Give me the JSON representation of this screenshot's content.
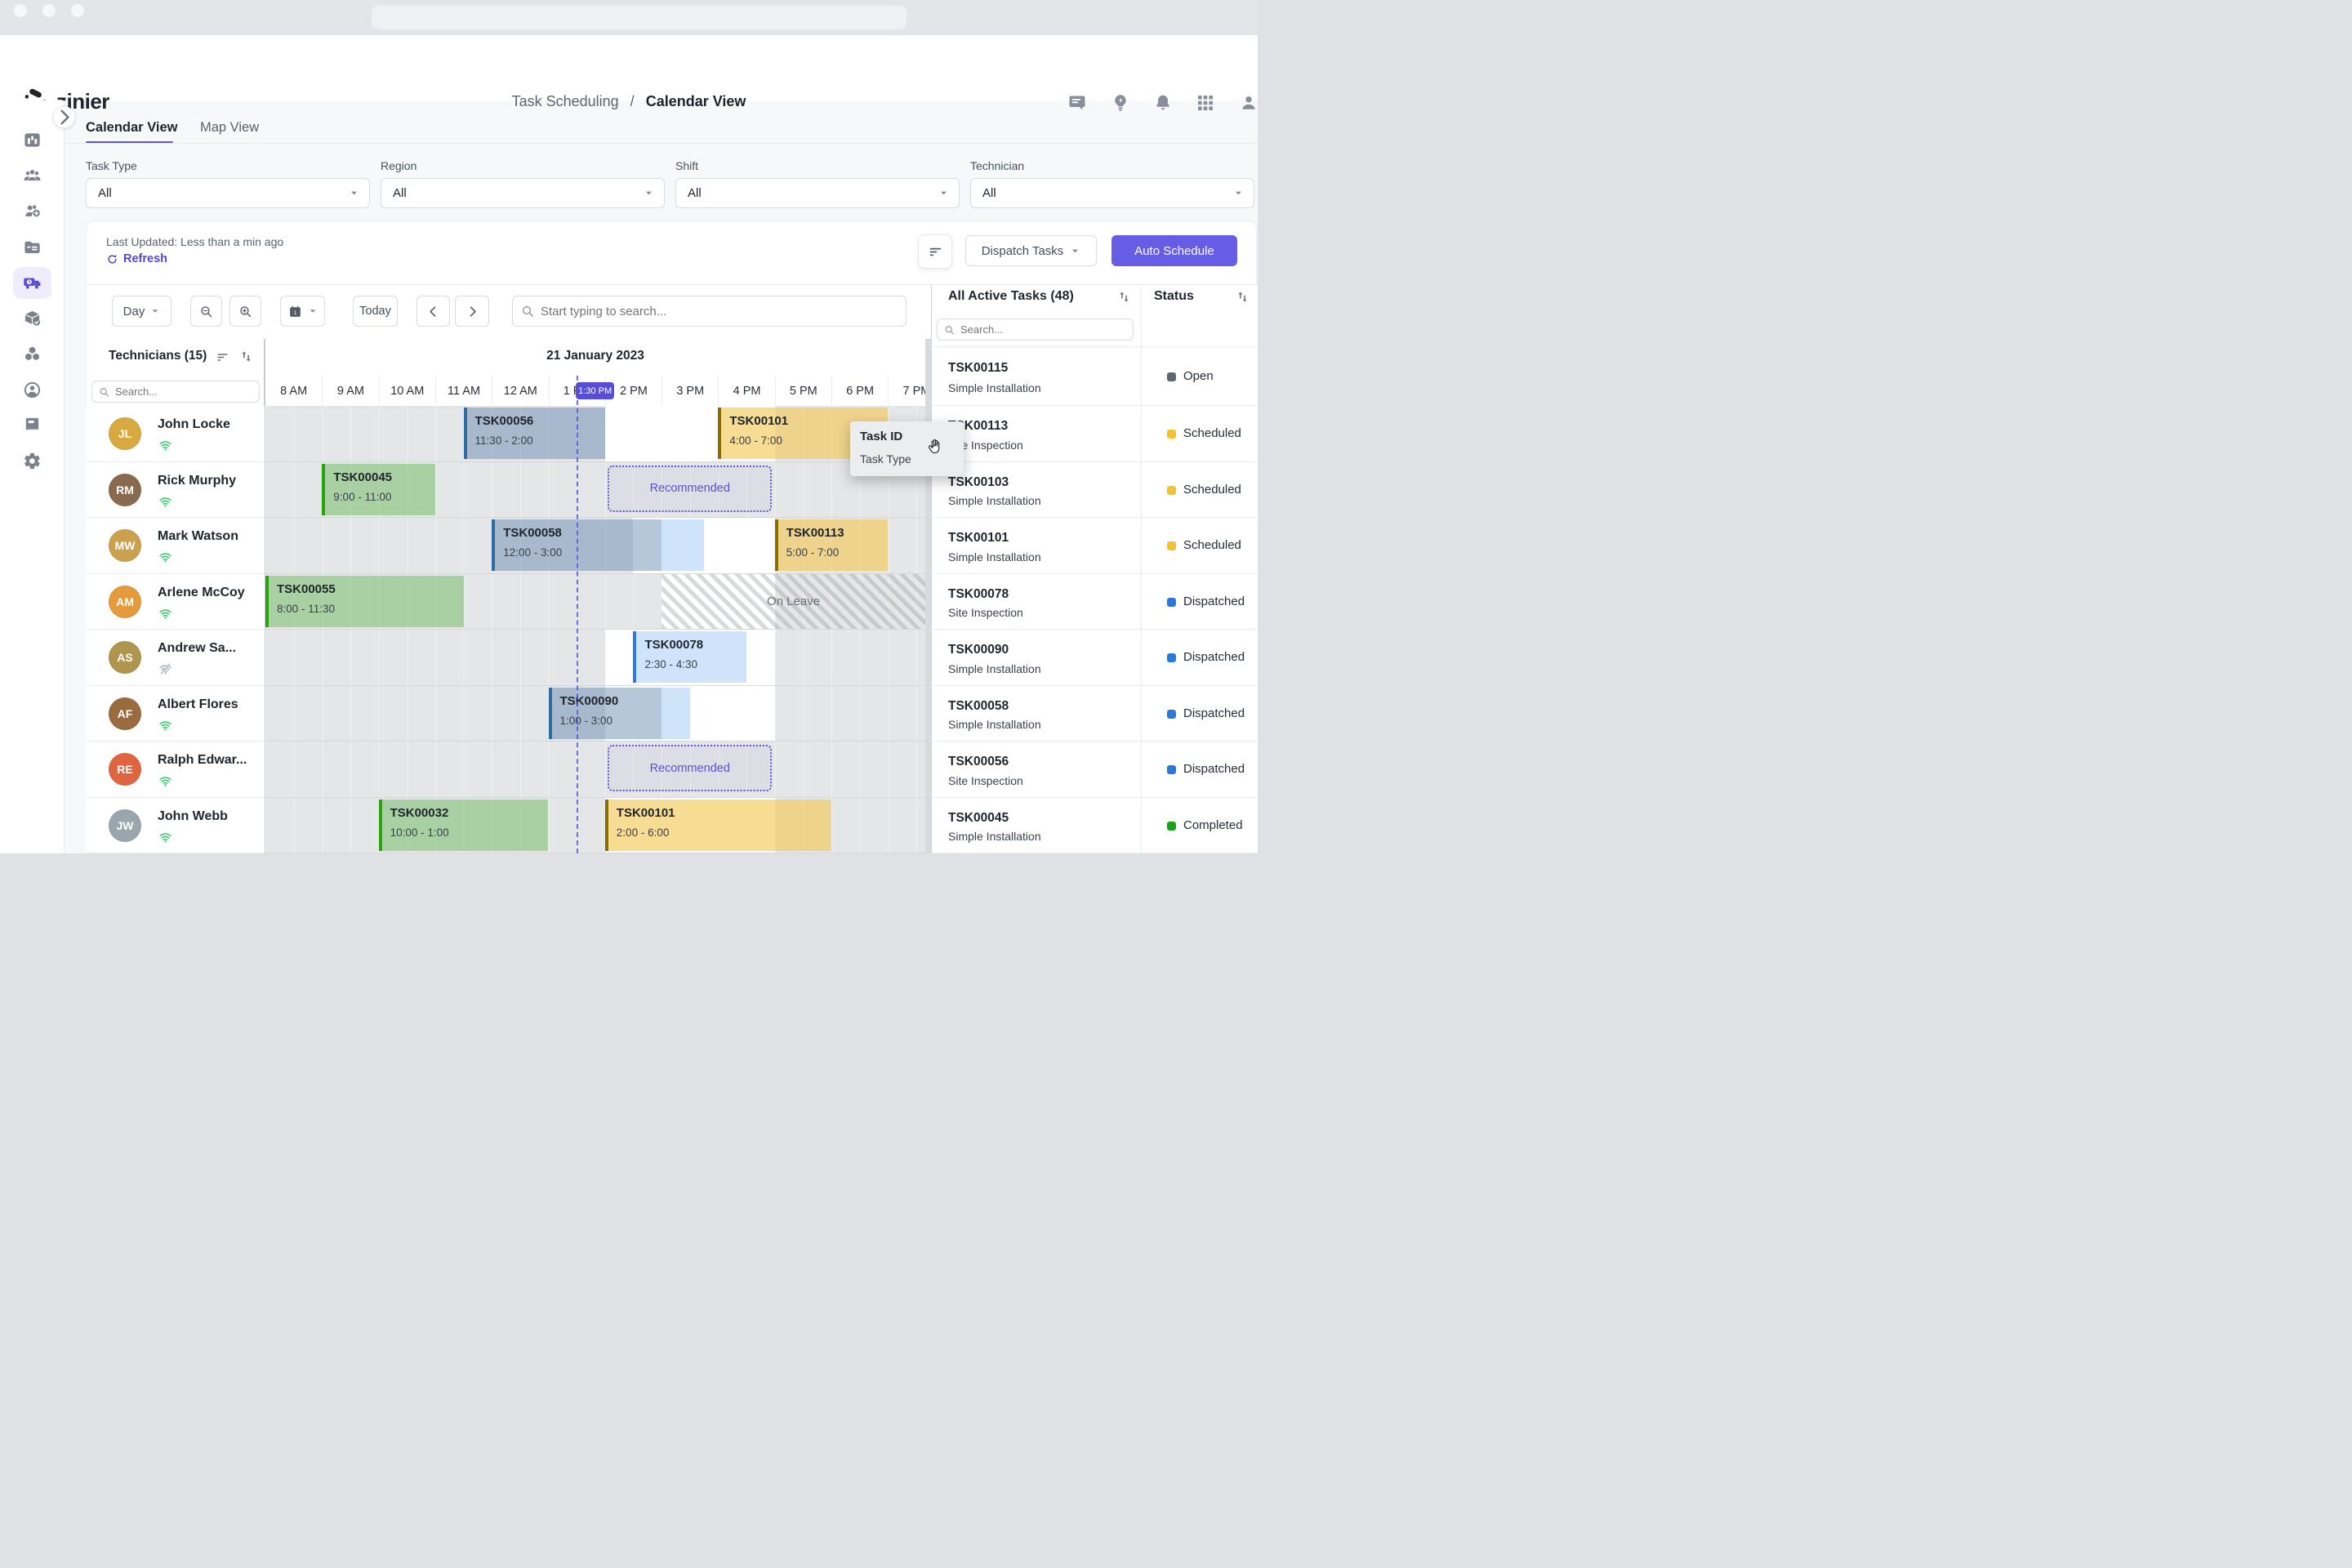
{
  "header": {
    "logo_text": "zinier",
    "breadcrumb": {
      "section": "Task Scheduling",
      "separator": "/",
      "page": "Calendar View"
    },
    "icons": [
      {
        "name": "messages"
      },
      {
        "name": "ideas"
      },
      {
        "name": "notifications"
      },
      {
        "name": "apps"
      },
      {
        "name": "account"
      }
    ]
  },
  "sidebar": {
    "items": [
      {
        "name": "analytics",
        "active": false
      },
      {
        "name": "teams",
        "active": false
      },
      {
        "name": "add-technician",
        "active": false
      },
      {
        "name": "work-orders",
        "active": false
      },
      {
        "name": "task-scheduling",
        "active": true
      },
      {
        "name": "inventory",
        "active": false
      },
      {
        "name": "assets",
        "active": false
      },
      {
        "name": "customers",
        "active": false
      },
      {
        "name": "knowledge-base",
        "active": false
      },
      {
        "name": "settings",
        "active": false
      }
    ]
  },
  "tabs": [
    {
      "label": "Calendar View",
      "active": true
    },
    {
      "label": "Map View",
      "active": false
    }
  ],
  "filters": [
    {
      "label": "Task Type",
      "value": "All"
    },
    {
      "label": "Region",
      "value": "All"
    },
    {
      "label": "Shift",
      "value": "All"
    },
    {
      "label": "Technician",
      "value": "All"
    }
  ],
  "toolbar": {
    "last_updated": "Last Updated: Less than a min ago",
    "refresh_label": "Refresh",
    "dispatch_tasks_label": "Dispatch Tasks",
    "auto_schedule_label": "Auto Schedule"
  },
  "controls": {
    "view_mode": "Day",
    "today_label": "Today",
    "search_placeholder": "Start typing to search..."
  },
  "schedule": {
    "date_header": "21 January 2023",
    "technicians_header": "Technicians (15)",
    "tech_search_placeholder": "Search...",
    "hours": [
      "8 AM",
      "9 AM",
      "10 AM",
      "11 AM",
      "12 AM",
      "1 PM",
      "2 PM",
      "3 PM",
      "4 PM",
      "5 PM",
      "6 PM",
      "7 PM"
    ],
    "now_indicator": {
      "label": "1:30 PM",
      "hours_from_start": 5.5
    },
    "technicians": [
      {
        "name": "John Locke",
        "initials": "JL",
        "online": true,
        "avatar_color": "#d8a93f"
      },
      {
        "name": "Rick Murphy",
        "initials": "RM",
        "online": true,
        "avatar_color": "#8a6a4f"
      },
      {
        "name": "Mark Watson",
        "initials": "MW",
        "online": true,
        "avatar_color": "#caa14e"
      },
      {
        "name": "Arlene McCoy",
        "initials": "AM",
        "online": true,
        "avatar_color": "#e59a3c"
      },
      {
        "name": "Andrew Sa...",
        "initials": "AS",
        "online": false,
        "avatar_color": "#b0954f"
      },
      {
        "name": "Albert Flores",
        "initials": "AF",
        "online": true,
        "avatar_color": "#9a6b3f"
      },
      {
        "name": "Ralph Edwar...",
        "initials": "RE",
        "online": true,
        "avatar_color": "#df6540"
      },
      {
        "name": "John Webb",
        "initials": "JW",
        "online": true,
        "avatar_color": "#9aa6ad"
      }
    ],
    "rows": [
      {
        "available": [
          {
            "start": 6,
            "end": 9
          }
        ],
        "tasks": [
          {
            "id": "TSK00056",
            "time": "11:30 - 2:00",
            "color": "steel",
            "start": 3.5,
            "duration": 2.5
          },
          {
            "id": "TSK00101",
            "time": "4:00 - 7:00",
            "color": "gold",
            "start": 8,
            "duration": 3
          }
        ]
      },
      {
        "tasks": [
          {
            "id": "TSK00045",
            "time": "9:00 - 11:00",
            "color": "green",
            "start": 1,
            "duration": 2
          }
        ],
        "recommended": {
          "label": "Recommended",
          "start": 6.05,
          "duration": 2.9
        }
      },
      {
        "available": [
          {
            "start": 6.5,
            "end": 9
          }
        ],
        "tasks": [
          {
            "id": "TSK00058",
            "time": "12:00 - 3:00",
            "color": "steel",
            "start": 4,
            "duration": 3
          },
          {
            "id": "TSK00113",
            "time": "5:00 - 7:00",
            "color": "gold",
            "start": 9,
            "duration": 2
          }
        ],
        "extensions": [
          {
            "start": 7,
            "duration": 0.75
          }
        ]
      },
      {
        "available": [
          {
            "start": 7,
            "end": 9
          }
        ],
        "tasks": [
          {
            "id": "TSK00055",
            "time": "8:00 - 11:30",
            "color": "green",
            "start": 0,
            "duration": 3.5
          }
        ],
        "on_leave": {
          "label": "On Leave",
          "start": 7,
          "end": 11.66
        }
      },
      {
        "available": [
          {
            "start": 6,
            "end": 9
          }
        ],
        "tasks": [
          {
            "id": "TSK00078",
            "time": "2:30 - 4:30",
            "color": "sky",
            "start": 6.5,
            "duration": 2
          }
        ]
      },
      {
        "available": [
          {
            "start": 6,
            "end": 9
          }
        ],
        "tasks": [
          {
            "id": "TSK00090",
            "time": "1:00 - 3:00",
            "color": "steel",
            "start": 5,
            "duration": 2
          }
        ],
        "extensions": [
          {
            "start": 7,
            "duration": 0.5
          }
        ]
      },
      {
        "recommended": {
          "label": "Recommended",
          "start": 6.05,
          "duration": 2.9
        }
      },
      {
        "available": [
          {
            "start": 6,
            "end": 9
          }
        ],
        "tasks": [
          {
            "id": "TSK00032",
            "time": "10:00 - 1:00",
            "color": "green",
            "start": 2,
            "duration": 3
          },
          {
            "id": "TSK00101",
            "time": "2:00 - 6:00",
            "color": "gold",
            "start": 6,
            "duration": 4
          }
        ]
      }
    ]
  },
  "task_panel": {
    "title": "All Active Tasks (48)",
    "status_header": "Status",
    "search_placeholder": "Search...",
    "rows": [
      {
        "id": "TSK00115",
        "type": "Simple Installation",
        "status": "Open"
      },
      {
        "id": "TSK00113",
        "type": "Site Inspection",
        "status": "Scheduled"
      },
      {
        "id": "TSK00103",
        "type": "Simple Installation",
        "status": "Scheduled"
      },
      {
        "id": "TSK00101",
        "type": "Simple Installation",
        "status": "Scheduled"
      },
      {
        "id": "TSK00078",
        "type": "Site Inspection",
        "status": "Dispatched"
      },
      {
        "id": "TSK00090",
        "type": "Simple Installation",
        "status": "Dispatched"
      },
      {
        "id": "TSK00058",
        "type": "Simple Installation",
        "status": "Dispatched"
      },
      {
        "id": "TSK00056",
        "type": "Site Inspection",
        "status": "Dispatched"
      },
      {
        "id": "TSK00045",
        "type": "Simple Installation",
        "status": "Completed"
      }
    ]
  },
  "drag_tooltip": {
    "line1": "Task ID",
    "line2": "Task Type"
  },
  "colors": {
    "accent": "#6458DE",
    "status": {
      "Open": "#5d6673",
      "Scheduled": "#f2c230",
      "Dispatched": "#2a79d8",
      "Completed": "#17a317"
    },
    "task": {
      "steel": {
        "border": "#2e6da4",
        "fill": "rgba(93,130,174,0.45)"
      },
      "sky": {
        "border": "#2e7cd6",
        "fill": "#cfe4fa"
      },
      "green": {
        "border": "#2aa30f",
        "fill": "rgba(121,189,106,0.55)"
      },
      "gold": {
        "border": "#8a6d00",
        "fill": "rgba(242,199,82,0.62)"
      }
    },
    "online": "#22c55e",
    "offline": "#9aa1a8"
  }
}
